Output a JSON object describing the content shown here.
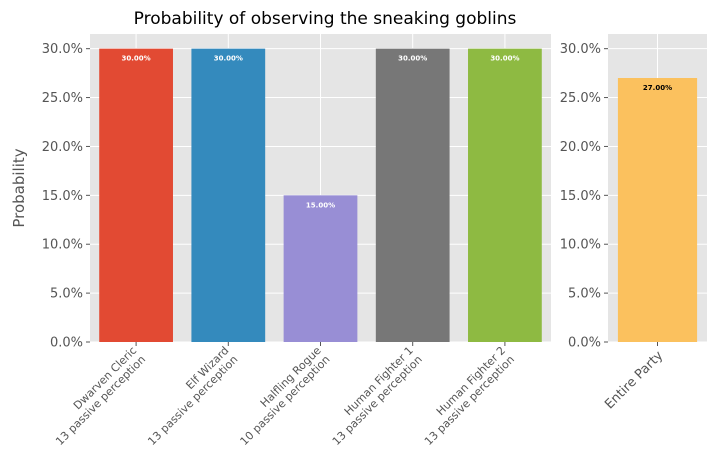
{
  "title": "Probability of observing the sneaking goblins",
  "chart_data": [
    {
      "type": "bar",
      "ylabel": "Probability",
      "ylim": [
        0,
        31.5
      ],
      "yticks": [
        "0.0%",
        "5.0%",
        "10.0%",
        "15.0%",
        "20.0%",
        "25.0%",
        "30.0%"
      ],
      "ytick_values": [
        0,
        5,
        10,
        15,
        20,
        25,
        30
      ],
      "grid": true,
      "categories": [
        {
          "line1": "Dwarven Cleric",
          "line2": "13 passive perception"
        },
        {
          "line1": "Elf Wizard",
          "line2": "13 passive perception"
        },
        {
          "line1": "Halfling Rogue",
          "line2": "10 passive perception"
        },
        {
          "line1": "Human Fighter 1",
          "line2": "13 passive perception"
        },
        {
          "line1": "Human Fighter 2",
          "line2": "13 passive perception"
        }
      ],
      "values": [
        30,
        30,
        15,
        30,
        30
      ],
      "data_labels": [
        "30.00%",
        "30.00%",
        "15.00%",
        "30.00%",
        "30.00%"
      ],
      "colors": [
        "#E24A33",
        "#348ABD",
        "#988ED5",
        "#777777",
        "#8EBA42"
      ],
      "label_color": "#ffffff"
    },
    {
      "type": "bar",
      "ylim": [
        0,
        31.5
      ],
      "yticks": [
        "0.0%",
        "5.0%",
        "10.0%",
        "15.0%",
        "20.0%",
        "25.0%",
        "30.0%"
      ],
      "ytick_values": [
        0,
        5,
        10,
        15,
        20,
        25,
        30
      ],
      "grid": true,
      "categories": [
        {
          "line1": "Entire Party",
          "line2": ""
        }
      ],
      "values": [
        27
      ],
      "data_labels": [
        "27.00%"
      ],
      "colors": [
        "#FBC15E"
      ],
      "label_color": "#000000"
    }
  ],
  "style": {
    "plot_bg": "#E5E5E5",
    "grid_color": "#FFFFFF",
    "tick_color": "#555555"
  }
}
